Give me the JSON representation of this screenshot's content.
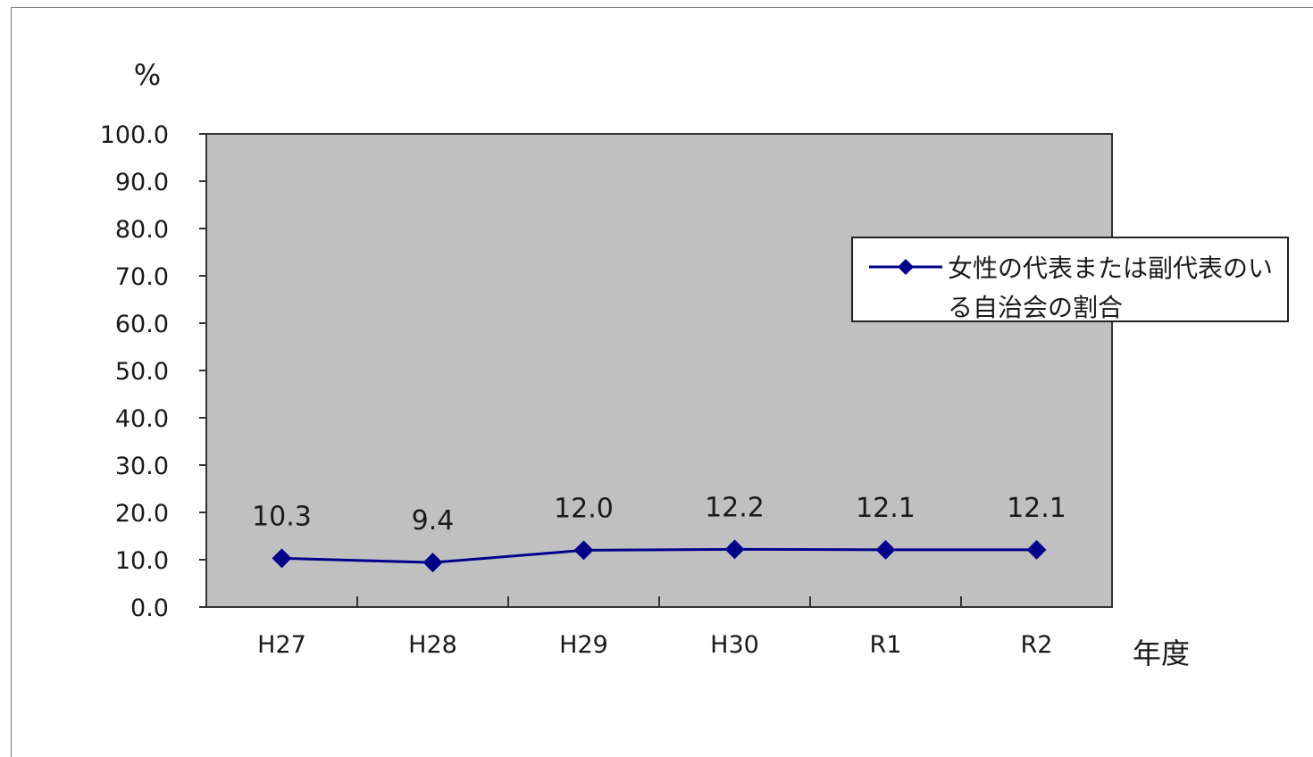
{
  "chart_data": {
    "type": "line",
    "title": "",
    "xlabel": "年度",
    "ylabel": "%",
    "categories": [
      "H27",
      "H28",
      "H29",
      "H30",
      "R1",
      "R2"
    ],
    "series": [
      {
        "name": "女性の代表または副代表のいる自治会の割合",
        "values": [
          10.3,
          9.4,
          12.0,
          12.2,
          12.1,
          12.1
        ],
        "labels": [
          "10.3",
          "9.4",
          "12.0",
          "12.2",
          "12.1",
          "12.1"
        ],
        "color": "#00008B",
        "marker": "diamond"
      }
    ],
    "ylim": [
      0,
      100
    ],
    "yticks": [
      "0.0",
      "10.0",
      "20.0",
      "30.0",
      "40.0",
      "50.0",
      "60.0",
      "70.0",
      "80.0",
      "90.0",
      "100.0"
    ],
    "grid": false,
    "plot_background": "#C0C0C0",
    "legend_position": "right"
  }
}
